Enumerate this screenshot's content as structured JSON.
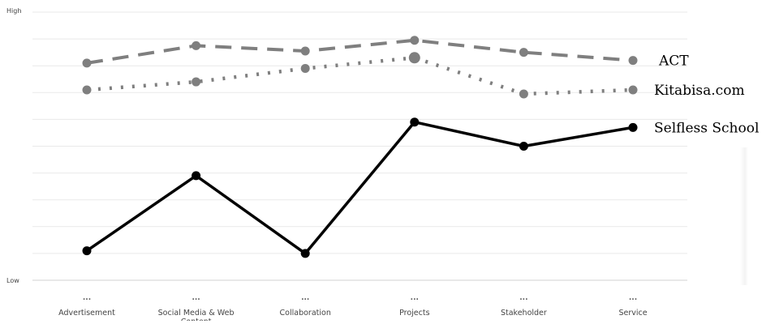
{
  "chart_data": {
    "type": "line",
    "title": "",
    "xlabel": "",
    "ylabel": "",
    "yaxis": {
      "top_label": "High",
      "bottom_label": "Low",
      "ylim": [
        0,
        10
      ],
      "gridlines": 10
    },
    "grid": true,
    "legend": "right, at line ends",
    "categories": [
      "Advertisement",
      "Social Media & Web Content",
      "Collaboration",
      "Projects",
      "Stakeholder",
      "Service"
    ],
    "category_markers": [
      "...",
      "...",
      "...",
      "...",
      "...",
      "..."
    ],
    "series": [
      {
        "name": "ACT",
        "style": "dashed",
        "color": "#7f7f7f",
        "values": [
          8.1,
          8.75,
          8.55,
          8.95,
          8.5,
          8.2
        ]
      },
      {
        "name": "Kitabisa.com",
        "style": "dotted",
        "color": "#7f7f7f",
        "values": [
          7.1,
          7.4,
          7.9,
          8.3,
          6.95,
          7.1
        ]
      },
      {
        "name": "Selfless School",
        "style": "solid",
        "color": "#000000",
        "values": [
          1.1,
          3.9,
          1.0,
          5.9,
          5.0,
          5.7
        ]
      }
    ]
  }
}
